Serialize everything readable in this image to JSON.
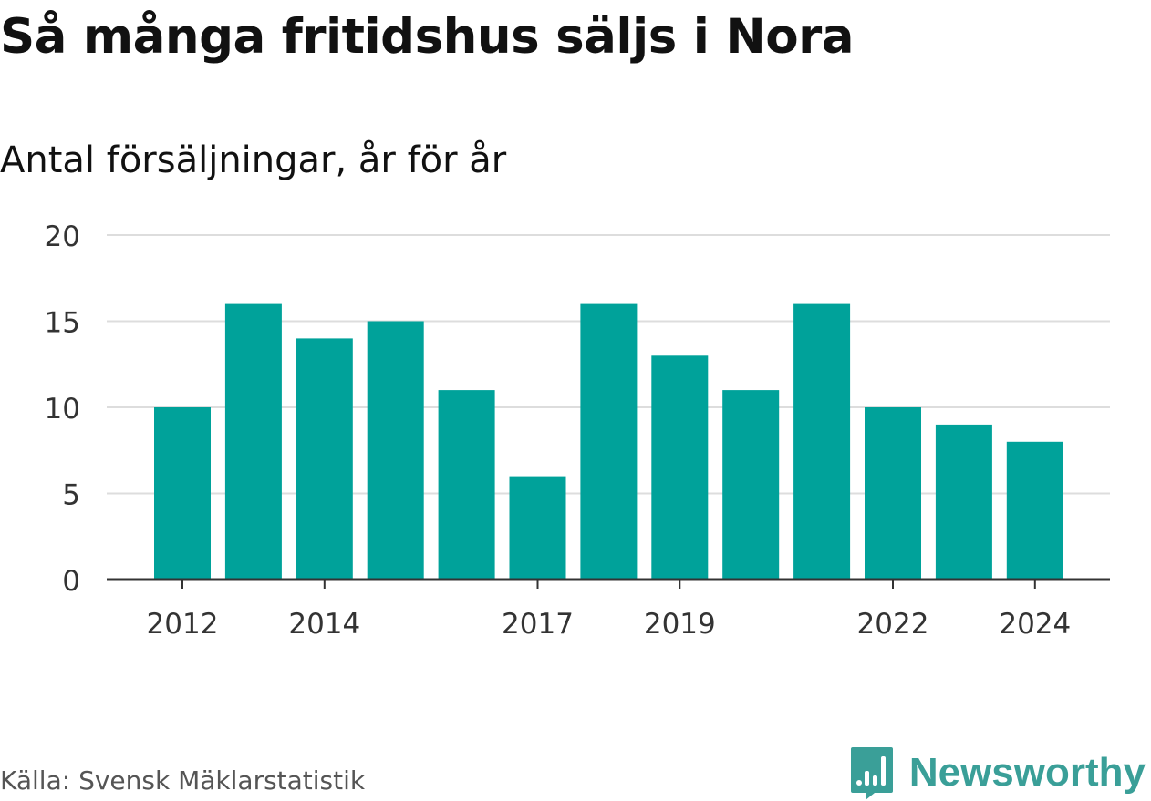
{
  "header": {
    "title": "Så många fritidshus säljs i Nora",
    "subtitle": "Antal försäljningar, år för år"
  },
  "footer": {
    "source": "Källa: Svensk Mäklarstatistik",
    "brand": "Newsworthy",
    "brand_icon": "newsworthy-logo-icon"
  },
  "colors": {
    "bar": "#00a29a",
    "grid": "#dddddd",
    "axis": "#333333",
    "brand": "#3a9f98"
  },
  "chart_data": {
    "type": "bar",
    "title": "Så många fritidshus säljs i Nora",
    "subtitle": "Antal försäljningar, år för år",
    "categories": [
      2012,
      2013,
      2014,
      2015,
      2016,
      2017,
      2018,
      2019,
      2020,
      2021,
      2022,
      2023,
      2024
    ],
    "values": [
      10,
      16,
      14,
      15,
      11,
      6,
      16,
      13,
      11,
      16,
      10,
      9,
      8
    ],
    "x_tick_labels": [
      "2012",
      "2014",
      "2017",
      "2019",
      "2022",
      "2024"
    ],
    "y_ticks": [
      0,
      5,
      10,
      15,
      20
    ],
    "ylim": [
      0,
      20
    ],
    "xlabel": "",
    "ylabel": "",
    "grid": true,
    "legend": "none"
  }
}
